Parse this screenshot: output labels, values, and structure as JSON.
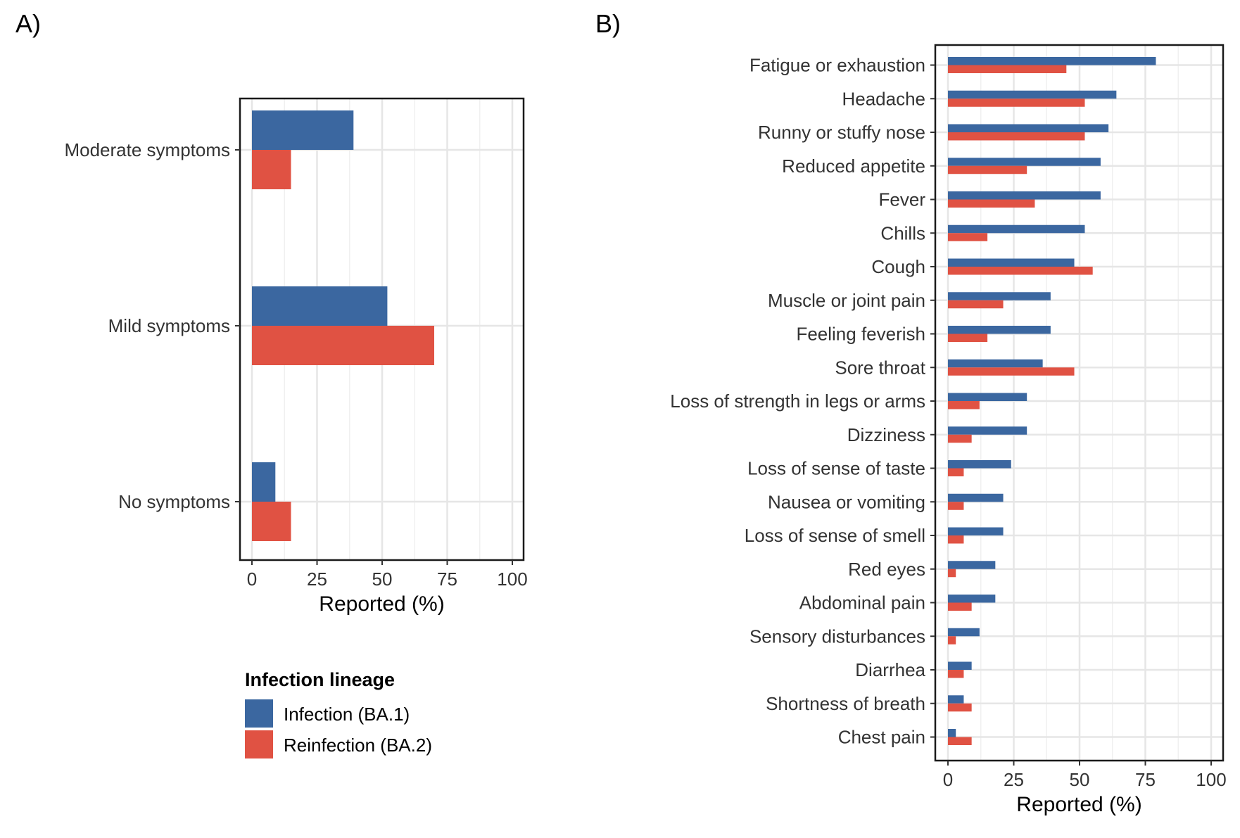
{
  "panels": {
    "a_label": "A)",
    "b_label": "B)"
  },
  "legend": {
    "title": "Infection lineage",
    "items": [
      {
        "label": "Infection (BA.1)",
        "color": "#3b67a0"
      },
      {
        "label": "Reinfection (BA.2)",
        "color": "#e05243"
      }
    ]
  },
  "chart_data": [
    {
      "type": "bar",
      "orientation": "horizontal",
      "panel": "A)",
      "categories": [
        "Moderate symptoms",
        "Mild symptoms",
        "No symptoms"
      ],
      "series": [
        {
          "name": "Infection (BA.1)",
          "color": "#3b67a0",
          "values": [
            39,
            52,
            9
          ]
        },
        {
          "name": "Reinfection (BA.2)",
          "color": "#e05243",
          "values": [
            15,
            70,
            15
          ]
        }
      ],
      "xlabel": "Reported (%)",
      "xlim": [
        0,
        100
      ],
      "xticks": [
        0,
        25,
        50,
        75,
        100
      ],
      "grid": true,
      "legend_position": "bottom"
    },
    {
      "type": "bar",
      "orientation": "horizontal",
      "panel": "B)",
      "categories": [
        "Fatigue or exhaustion",
        "Headache",
        "Runny or stuffy nose",
        "Reduced appetite",
        "Fever",
        "Chills",
        "Cough",
        "Muscle or joint pain",
        "Feeling feverish",
        "Sore throat",
        "Loss of strength in legs or arms",
        "Dizziness",
        "Loss of sense of taste",
        "Nausea or vomiting",
        "Loss of sense of smell",
        "Red eyes",
        "Abdominal pain",
        "Sensory disturbances",
        "Diarrhea",
        "Shortness of breath",
        "Chest pain"
      ],
      "series": [
        {
          "name": "Infection (BA.1)",
          "color": "#3b67a0",
          "values": [
            79,
            64,
            61,
            58,
            58,
            52,
            48,
            39,
            39,
            36,
            30,
            30,
            24,
            21,
            21,
            18,
            18,
            12,
            9,
            6,
            3
          ]
        },
        {
          "name": "Reinfection (BA.2)",
          "color": "#e05243",
          "values": [
            45,
            52,
            52,
            30,
            33,
            15,
            55,
            21,
            15,
            48,
            12,
            9,
            6,
            6,
            6,
            3,
            9,
            3,
            6,
            9,
            9
          ]
        }
      ],
      "xlabel": "Reported (%)",
      "xlim": [
        0,
        100
      ],
      "xticks": [
        0,
        25,
        50,
        75,
        100
      ],
      "grid": true
    }
  ]
}
